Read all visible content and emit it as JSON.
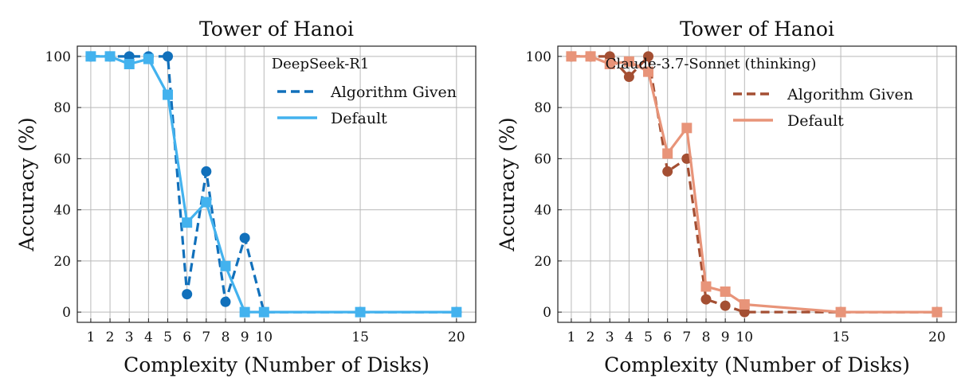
{
  "chart_data": [
    {
      "type": "line",
      "title": "Tower of Hanoi",
      "xlabel": "Complexity (Number of Disks)",
      "ylabel": "Accuracy (%)",
      "xlim": [
        0.3,
        21
      ],
      "ylim": [
        -4,
        104
      ],
      "xticks": [
        1,
        2,
        3,
        4,
        5,
        6,
        7,
        8,
        9,
        10,
        15,
        20
      ],
      "yticks": [
        0,
        20,
        40,
        60,
        80,
        100
      ],
      "grid": true,
      "legend_title": "DeepSeek-R1",
      "legend_position": "top-right",
      "series": [
        {
          "name": "Algorithm Given",
          "style": "dashed",
          "marker": "circle",
          "color": "#1170bb",
          "x": [
            1,
            2,
            3,
            4,
            5,
            6,
            7,
            8,
            9,
            10,
            15,
            20
          ],
          "y": [
            100,
            100,
            100,
            100,
            100,
            7,
            55,
            4,
            29,
            0,
            0,
            0
          ]
        },
        {
          "name": "Default",
          "style": "solid",
          "marker": "square",
          "color": "#43b2ee",
          "x": [
            1,
            2,
            3,
            4,
            5,
            6,
            7,
            8,
            9,
            10,
            15,
            20
          ],
          "y": [
            100,
            100,
            97,
            99,
            85,
            35,
            43,
            18,
            0,
            0,
            0,
            0
          ]
        }
      ]
    },
    {
      "type": "line",
      "title": "Tower of Hanoi",
      "xlabel": "Complexity (Number of Disks)",
      "ylabel": "Accuracy (%)",
      "xlim": [
        0.3,
        21
      ],
      "ylim": [
        -4,
        104
      ],
      "xticks": [
        1,
        2,
        3,
        4,
        5,
        6,
        7,
        8,
        9,
        10,
        15,
        20
      ],
      "yticks": [
        0,
        20,
        40,
        60,
        80,
        100
      ],
      "grid": true,
      "legend_title": "Claude-3.7-Sonnet (thinking)",
      "legend_position": "top-right",
      "series": [
        {
          "name": "Algorithm Given",
          "style": "dashed",
          "marker": "circle",
          "color": "#a44f33",
          "x": [
            1,
            2,
            3,
            4,
            5,
            6,
            7,
            8,
            9,
            10,
            15,
            20
          ],
          "y": [
            100,
            100,
            100,
            92,
            100,
            55,
            60,
            5,
            2.5,
            0,
            0,
            0
          ]
        },
        {
          "name": "Default",
          "style": "solid",
          "marker": "square",
          "color": "#e89479",
          "x": [
            1,
            2,
            3,
            4,
            5,
            6,
            7,
            8,
            9,
            10,
            15,
            20
          ],
          "y": [
            100,
            100,
            97,
            98,
            94,
            62,
            72,
            10,
            8,
            3,
            0,
            0
          ]
        }
      ]
    }
  ]
}
